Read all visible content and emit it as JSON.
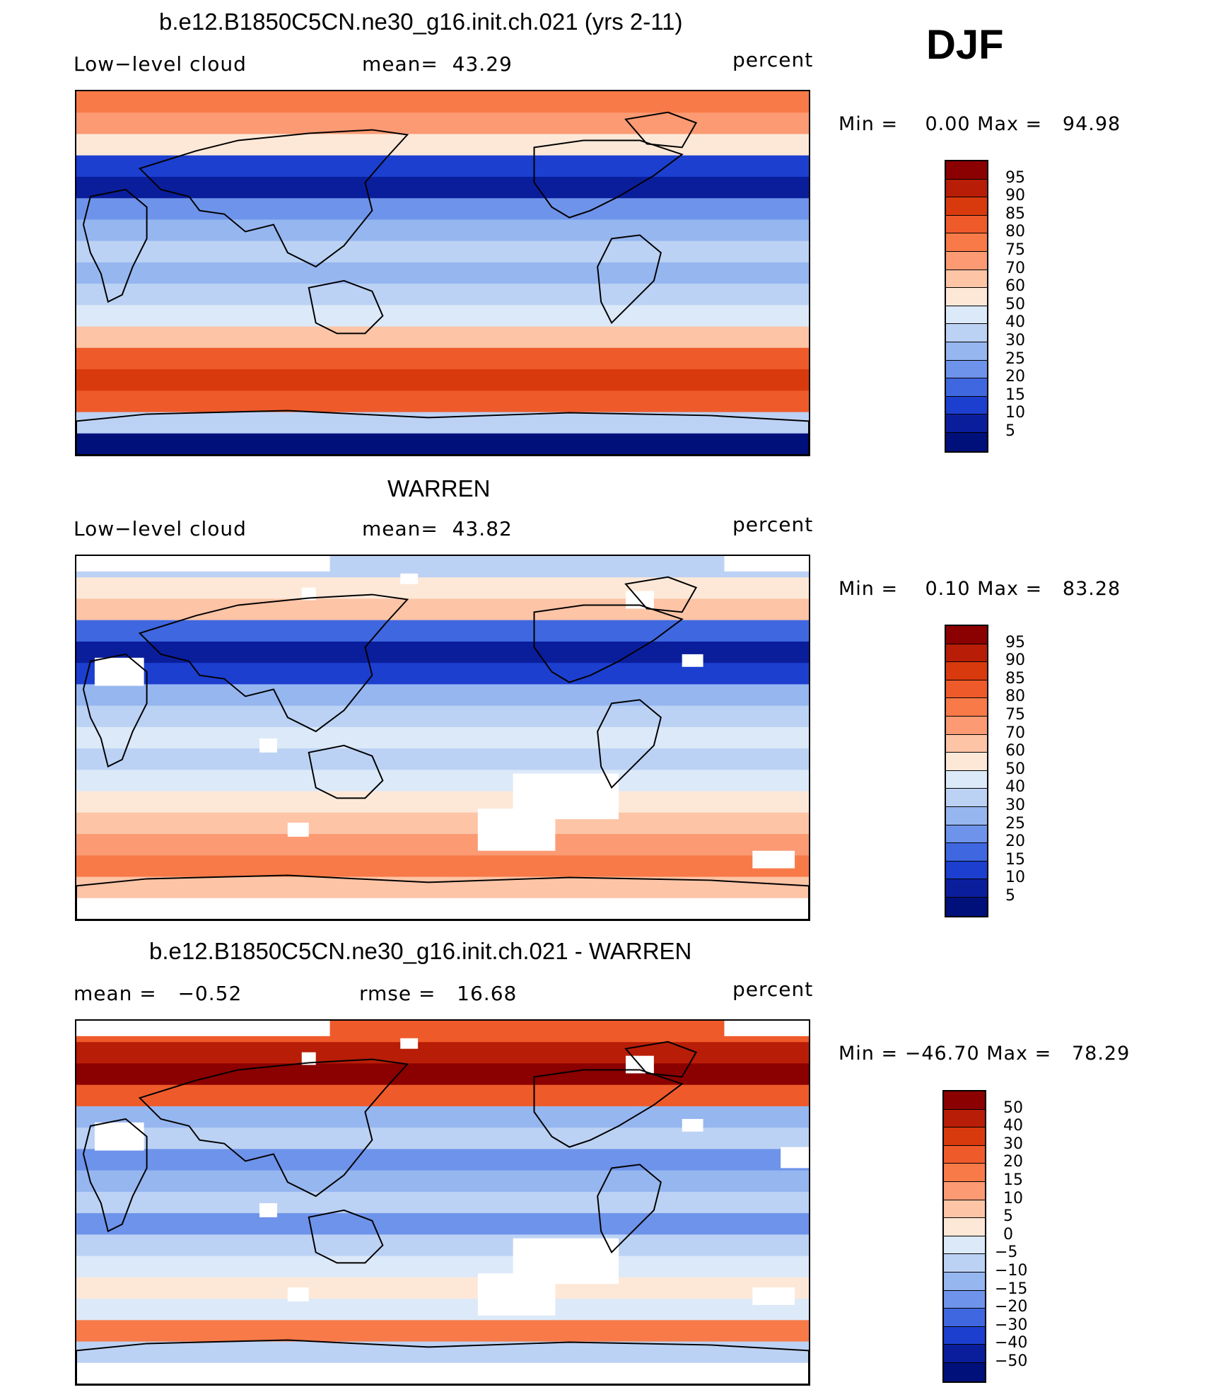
{
  "season": "DJF",
  "panels": [
    {
      "title": "b.e12.B1850C5CN.ne30_g16.init.ch.021 (yrs 2-11)",
      "left_label": "Low−level cloud",
      "mid_label": "mean=  43.29",
      "units": "percent",
      "range": "Min =    0.00 Max =   94.98",
      "colorbar_labels": [
        "95",
        "90",
        "85",
        "80",
        "75",
        "70",
        "60",
        "50",
        "40",
        "30",
        "25",
        "20",
        "15",
        "10",
        "5"
      ],
      "map_style": "model"
    },
    {
      "title": "WARREN",
      "left_label": "Low−level cloud",
      "mid_label": "mean=  43.82",
      "units": "percent",
      "range": "Min =    0.10 Max =   83.28",
      "colorbar_labels": [
        "95",
        "90",
        "85",
        "80",
        "75",
        "70",
        "60",
        "50",
        "40",
        "30",
        "25",
        "20",
        "15",
        "10",
        "5"
      ],
      "map_style": "obs"
    },
    {
      "title": "b.e12.B1850C5CN.ne30_g16.init.ch.021 - WARREN",
      "left_label": "mean =   −0.52",
      "mid_label": "rmse =   16.68",
      "units": "percent",
      "range": "Min = −46.70 Max =   78.29",
      "colorbar_labels": [
        "50",
        "40",
        "30",
        "20",
        "15",
        "10",
        "5",
        "0",
        "−5",
        "−10",
        "−15",
        "−20",
        "−30",
        "−40",
        "−50"
      ],
      "map_style": "diff"
    }
  ],
  "colorbar_colors": [
    "#8b0000",
    "#b81d07",
    "#d83a0e",
    "#ef5a2a",
    "#f77a48",
    "#fb9a73",
    "#fdc4a6",
    "#fde8d8",
    "#dce9f8",
    "#bcd2f4",
    "#96b6f0",
    "#6e93ea",
    "#3f67e0",
    "#1c3fd0",
    "#0a1e9c",
    "#00107a"
  ]
}
